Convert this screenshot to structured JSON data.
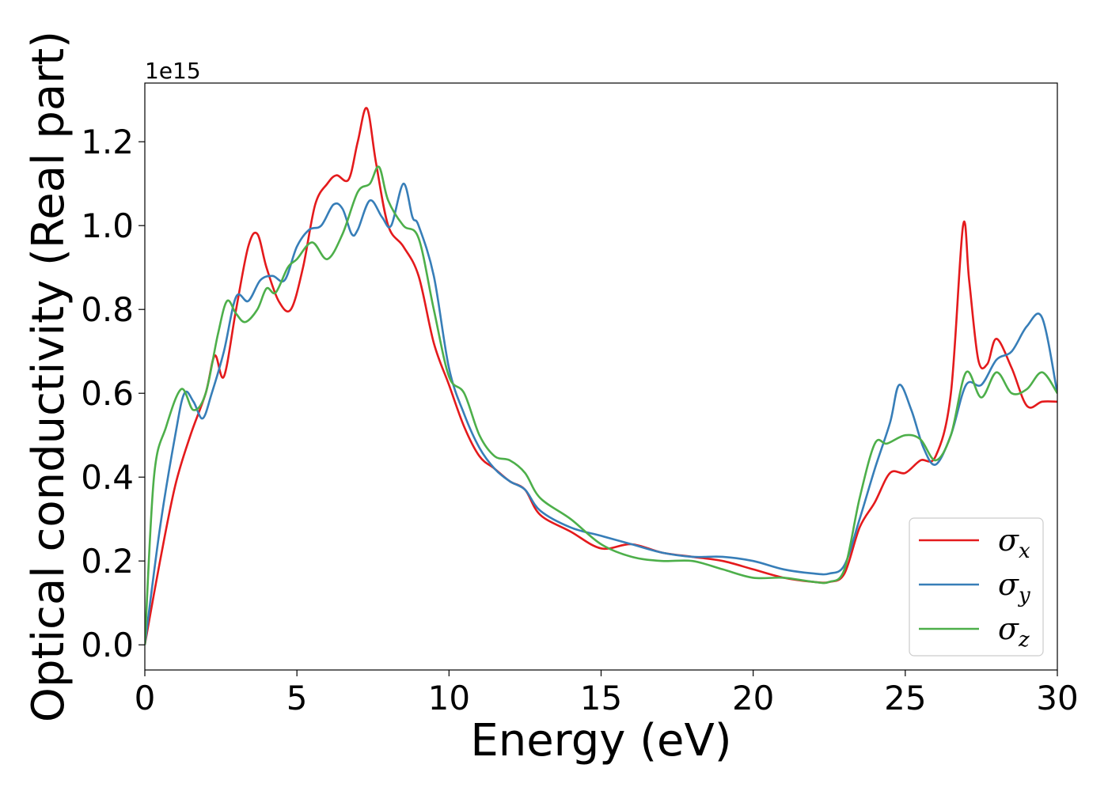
{
  "chart_data": {
    "type": "line",
    "xlabel": "Energy (eV)",
    "ylabel": "Optical conductivity (Real part)",
    "y_offset_text": "1e15",
    "xlim": [
      0,
      30
    ],
    "ylim": [
      -0.06,
      1.34
    ],
    "x_ticks": [
      0,
      5,
      10,
      15,
      20,
      25,
      30
    ],
    "x_tick_labels": [
      "0",
      "5",
      "10",
      "15",
      "20",
      "25",
      "30"
    ],
    "y_ticks": [
      0.0,
      0.2,
      0.4,
      0.6,
      0.8,
      1.0,
      1.2
    ],
    "y_tick_labels": [
      "0.0",
      "0.2",
      "0.4",
      "0.6",
      "0.8",
      "1.0",
      "1.2"
    ],
    "grid": false,
    "legend_position": "lower-right",
    "series": [
      {
        "name": "σ_x",
        "label_base": "σ",
        "label_sub": "x",
        "color": "#e41a1c",
        "x": [
          0,
          0.5,
          1.0,
          1.5,
          2.0,
          2.3,
          2.6,
          3.0,
          3.4,
          3.7,
          4.0,
          4.4,
          4.8,
          5.2,
          5.6,
          6.0,
          6.3,
          6.7,
          7.0,
          7.3,
          7.6,
          8.0,
          8.5,
          9.0,
          9.5,
          10.0,
          10.5,
          11.0,
          11.5,
          12.0,
          12.5,
          13.0,
          14.0,
          15.0,
          16.0,
          17.0,
          18.0,
          19.0,
          20.0,
          21.0,
          22.0,
          22.5,
          23.0,
          23.5,
          24.0,
          24.5,
          25.0,
          25.5,
          26.0,
          26.5,
          26.9,
          27.1,
          27.4,
          27.7,
          28.0,
          28.5,
          29.0,
          29.5,
          30.0
        ],
        "y": [
          0.0,
          0.2,
          0.38,
          0.5,
          0.6,
          0.69,
          0.64,
          0.8,
          0.95,
          0.98,
          0.9,
          0.82,
          0.8,
          0.9,
          1.05,
          1.1,
          1.12,
          1.11,
          1.2,
          1.28,
          1.15,
          1.0,
          0.95,
          0.88,
          0.72,
          0.62,
          0.52,
          0.45,
          0.42,
          0.39,
          0.37,
          0.31,
          0.27,
          0.23,
          0.24,
          0.22,
          0.21,
          0.2,
          0.18,
          0.16,
          0.15,
          0.15,
          0.17,
          0.28,
          0.34,
          0.41,
          0.41,
          0.44,
          0.45,
          0.6,
          1.0,
          0.87,
          0.68,
          0.67,
          0.73,
          0.66,
          0.57,
          0.58,
          0.58
        ]
      },
      {
        "name": "σ_y",
        "label_base": "σ",
        "label_sub": "y",
        "color": "#377eb8",
        "x": [
          0,
          0.5,
          1.0,
          1.3,
          1.6,
          1.9,
          2.2,
          2.6,
          3.0,
          3.4,
          3.8,
          4.2,
          4.6,
          5.0,
          5.4,
          5.8,
          6.2,
          6.5,
          6.8,
          7.0,
          7.4,
          7.8,
          8.1,
          8.5,
          8.8,
          9.0,
          9.5,
          10.0,
          10.5,
          11.0,
          11.5,
          12.0,
          12.5,
          13.0,
          14.0,
          15.0,
          16.0,
          17.0,
          18.0,
          19.0,
          20.0,
          21.0,
          22.0,
          22.5,
          23.0,
          23.5,
          24.0,
          24.5,
          24.8,
          25.2,
          25.6,
          26.0,
          26.5,
          27.0,
          27.5,
          28.0,
          28.5,
          29.0,
          29.5,
          30.0
        ],
        "y": [
          0.0,
          0.28,
          0.5,
          0.6,
          0.58,
          0.54,
          0.6,
          0.7,
          0.83,
          0.82,
          0.87,
          0.88,
          0.87,
          0.95,
          0.99,
          1.0,
          1.05,
          1.04,
          0.98,
          0.99,
          1.06,
          1.02,
          1.0,
          1.1,
          1.02,
          1.0,
          0.88,
          0.66,
          0.55,
          0.47,
          0.42,
          0.39,
          0.37,
          0.32,
          0.28,
          0.26,
          0.24,
          0.22,
          0.21,
          0.21,
          0.2,
          0.18,
          0.17,
          0.17,
          0.19,
          0.3,
          0.42,
          0.53,
          0.62,
          0.56,
          0.47,
          0.43,
          0.5,
          0.62,
          0.62,
          0.68,
          0.7,
          0.76,
          0.78,
          0.6
        ]
      },
      {
        "name": "σ_z",
        "label_base": "σ",
        "label_sub": "z",
        "color": "#4daf4a",
        "x": [
          0,
          0.3,
          0.7,
          1.2,
          1.6,
          2.0,
          2.4,
          2.7,
          3.0,
          3.3,
          3.7,
          4.0,
          4.3,
          4.7,
          5.0,
          5.5,
          6.0,
          6.5,
          7.0,
          7.4,
          7.7,
          8.0,
          8.5,
          9.0,
          9.5,
          10.0,
          10.5,
          11.0,
          11.5,
          12.0,
          12.5,
          13.0,
          14.0,
          15.0,
          16.0,
          17.0,
          18.0,
          19.0,
          20.0,
          21.0,
          22.0,
          22.5,
          23.0,
          23.5,
          24.0,
          24.4,
          25.0,
          25.5,
          26.0,
          26.5,
          27.0,
          27.5,
          28.0,
          28.5,
          29.0,
          29.5,
          30.0
        ],
        "y": [
          0.0,
          0.4,
          0.52,
          0.61,
          0.56,
          0.6,
          0.74,
          0.82,
          0.79,
          0.77,
          0.8,
          0.85,
          0.84,
          0.9,
          0.92,
          0.96,
          0.92,
          0.98,
          1.08,
          1.1,
          1.14,
          1.06,
          1.0,
          0.97,
          0.8,
          0.64,
          0.6,
          0.5,
          0.45,
          0.44,
          0.41,
          0.35,
          0.3,
          0.24,
          0.21,
          0.2,
          0.2,
          0.18,
          0.16,
          0.16,
          0.15,
          0.15,
          0.18,
          0.35,
          0.48,
          0.48,
          0.5,
          0.49,
          0.44,
          0.5,
          0.65,
          0.59,
          0.65,
          0.6,
          0.61,
          0.65,
          0.6
        ]
      }
    ]
  }
}
